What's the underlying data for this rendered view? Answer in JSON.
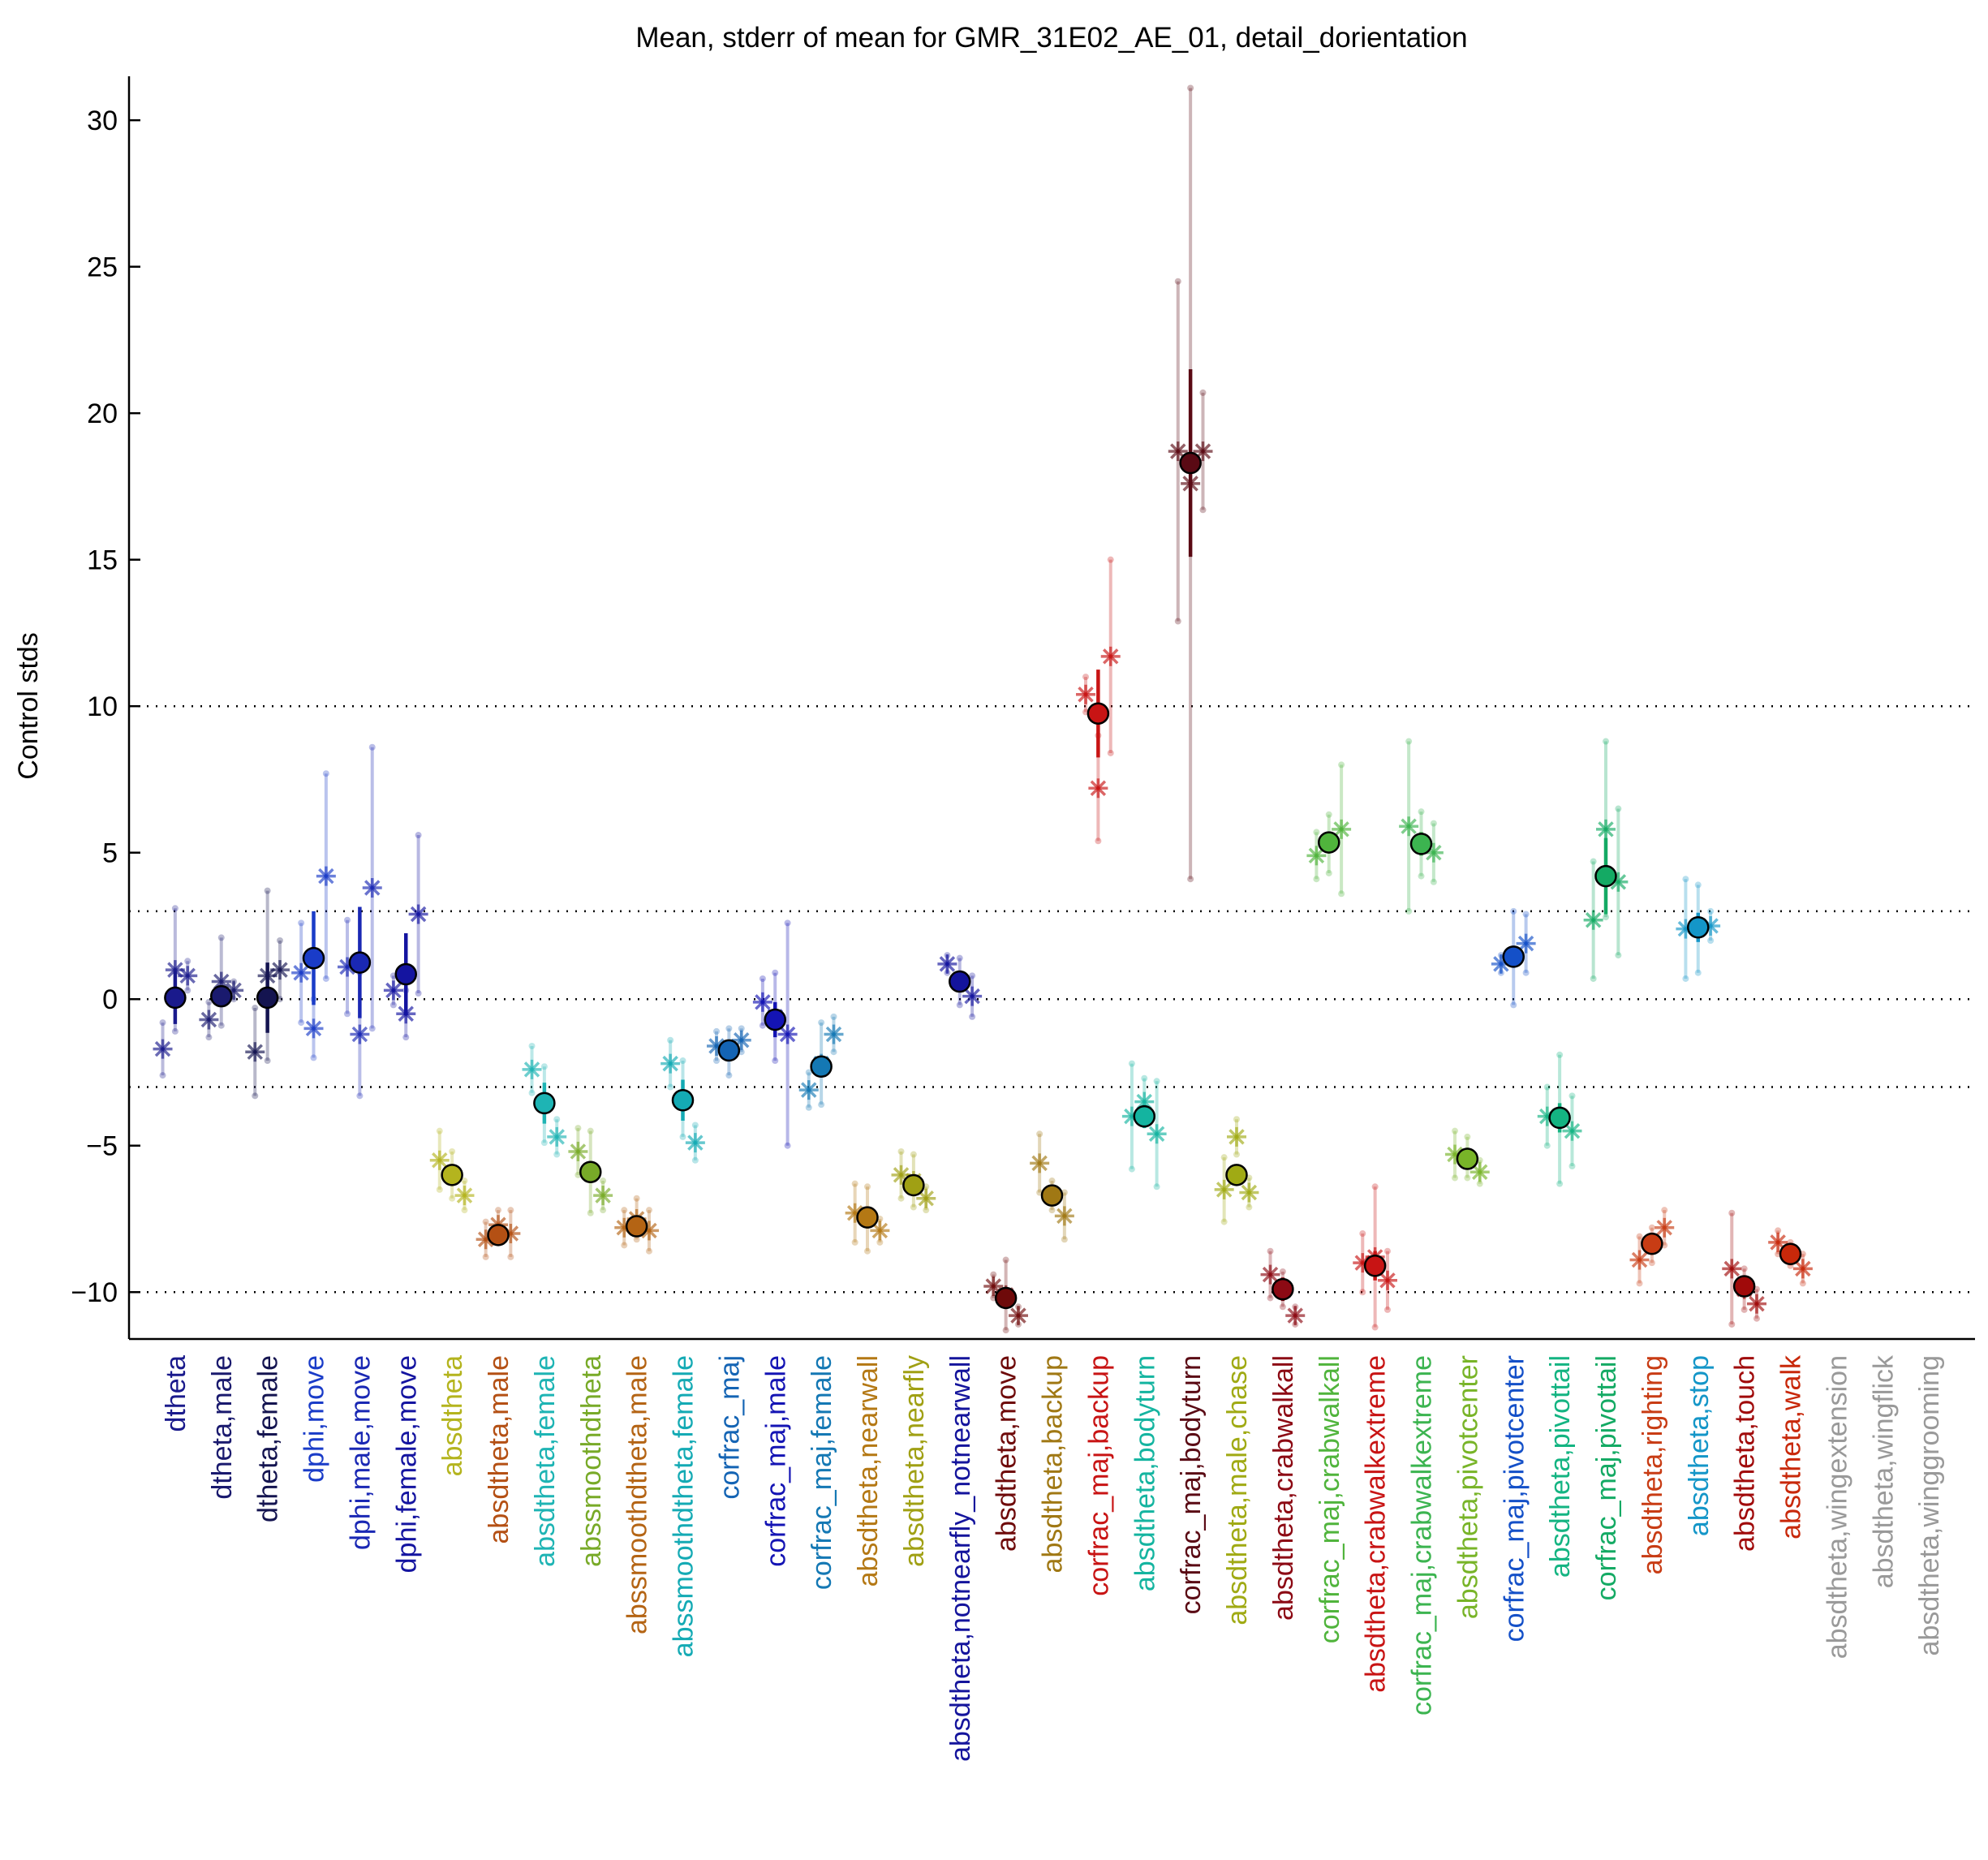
{
  "chart_data": {
    "type": "errorbar",
    "title": "Mean, stderr of mean for GMR_31E02_AE_01, detail_dorientation",
    "y_label": "Control stds",
    "ylim": [
      -11.6,
      31.5
    ],
    "yticks": [
      {
        "value": -10,
        "label": "−10"
      },
      {
        "value": -5,
        "label": "−5"
      },
      0,
      5,
      10,
      15,
      20,
      25,
      30
    ],
    "reference_lines": [
      -10,
      -3,
      0,
      3,
      10
    ],
    "categories": [
      "dtheta",
      "dtheta,male",
      "dtheta,female",
      "dphi,move",
      "dphi,male,move",
      "dphi,female,move",
      "absdtheta",
      "absdtheta,male",
      "absdtheta,female",
      "abssmoothdtheta",
      "abssmoothdtheta,male",
      "abssmoothdtheta,female",
      "corfrac_maj",
      "corfrac_maj,male",
      "corfrac_maj,female",
      "absdtheta,nearwall",
      "absdtheta,nearfly",
      "absdtheta,notnearfly_notnearwall",
      "absdtheta,move",
      "absdtheta,backup",
      "corfrac_maj,backup",
      "absdtheta,bodyturn",
      "corfrac_maj,bodyturn",
      "absdtheta,male,chase",
      "absdtheta,crabwalkall",
      "corfrac_maj,crabwalkall",
      "absdtheta,crabwalkextreme",
      "corfrac_maj,crabwalkextreme",
      "absdtheta,pivotcenter",
      "corfrac_maj,pivotcenter",
      "absdtheta,pivottail",
      "corfrac_maj,pivottail",
      "absdtheta,righting",
      "absdtheta,stop",
      "absdtheta,touch",
      "absdtheta,walk",
      "absdtheta,wingextension",
      "absdtheta,wingflick",
      "absdtheta,winggrooming"
    ],
    "colors": [
      "#1a1a8c",
      "#1a1a6e",
      "#141450",
      "#1a3cc8",
      "#1a28b4",
      "#1414a0",
      "#b4b41e",
      "#b45014",
      "#1eb4b4",
      "#78aa28",
      "#b46414",
      "#14aab4",
      "#1464b4",
      "#1414b4",
      "#1478b4",
      "#b47814",
      "#a0a014",
      "#14149c",
      "#6e0a0a",
      "#a07814",
      "#c81414",
      "#14b4a0",
      "#5a0a14",
      "#a0aa14",
      "#8c0a14",
      "#50b43c",
      "#c81414",
      "#3cb450",
      "#78b428",
      "#1450c8",
      "#14b482",
      "#14aa64",
      "#c83c14",
      "#1496c8",
      "#a00a0a",
      "#c8280a",
      "#999999",
      "#999999",
      "#999999"
    ],
    "means": [
      0.05,
      0.1,
      0.05,
      1.4,
      1.25,
      0.85,
      -6.0,
      -8.05,
      -3.55,
      -5.9,
      -7.75,
      -3.45,
      -1.75,
      -0.7,
      -2.3,
      -7.45,
      -6.35,
      0.6,
      -10.2,
      -6.7,
      9.75,
      -4.0,
      18.3,
      -6.0,
      -9.9,
      5.35,
      -9.1,
      5.3,
      -5.45,
      1.45,
      -4.05,
      4.2,
      -8.35,
      2.45,
      -9.8,
      -8.7,
      null,
      null,
      null
    ],
    "mean_errors": [
      0.9,
      0.3,
      1.2,
      1.6,
      1.9,
      1.4,
      0.3,
      0.3,
      0.7,
      0.3,
      0.3,
      0.7,
      0.2,
      0.6,
      0.3,
      0.3,
      0.2,
      0.2,
      0.2,
      0.3,
      1.5,
      0.4,
      3.2,
      0.3,
      0.4,
      0.3,
      0.5,
      0.4,
      0.2,
      0.3,
      0.5,
      1.3,
      0.2,
      0.5,
      0.3,
      0.2,
      null,
      null,
      null
    ],
    "points": [
      [
        -1.7,
        1.0,
        0.8
      ],
      [
        -0.7,
        0.6,
        0.3
      ],
      [
        -1.8,
        0.8,
        1.0
      ],
      [
        0.9,
        -1.0,
        4.2
      ],
      [
        1.1,
        -1.2,
        3.8
      ],
      [
        0.3,
        -0.5,
        2.9
      ],
      [
        -5.5,
        -6.0,
        -6.7
      ],
      [
        -8.2,
        -7.7,
        -8.0
      ],
      [
        -2.4,
        -3.6,
        -4.7
      ],
      [
        -5.2,
        -5.9,
        -6.7
      ],
      [
        -7.8,
        -7.5,
        -7.9
      ],
      [
        -2.2,
        -3.4,
        -4.9
      ],
      [
        -1.6,
        -1.8,
        -1.4
      ],
      [
        -0.1,
        -0.6,
        -1.2
      ],
      [
        -3.1,
        -2.2,
        -1.2
      ],
      [
        -7.3,
        -7.5,
        -7.9
      ],
      [
        -6.0,
        -6.2,
        -6.8
      ],
      [
        1.2,
        0.6,
        0.1
      ],
      [
        -9.8,
        -10.1,
        -10.8
      ],
      [
        -5.6,
        -6.7,
        -7.4
      ],
      [
        10.4,
        7.2,
        11.7
      ],
      [
        -4.0,
        -3.5,
        -4.6
      ],
      [
        18.7,
        17.6,
        18.7
      ],
      [
        -6.5,
        -4.7,
        -6.6
      ],
      [
        -9.4,
        -9.9,
        -10.8
      ],
      [
        4.9,
        5.3,
        5.8
      ],
      [
        -9.0,
        -8.8,
        -9.6
      ],
      [
        5.9,
        5.3,
        5.0
      ],
      [
        -5.3,
        -5.4,
        -5.9
      ],
      [
        1.2,
        1.4,
        1.9
      ],
      [
        -4.0,
        -4.1,
        -4.5
      ],
      [
        2.7,
        5.8,
        4.0
      ],
      [
        -8.9,
        -8.4,
        -7.8
      ],
      [
        2.4,
        2.4,
        2.5
      ],
      [
        -9.2,
        -9.9,
        -10.4
      ],
      [
        -8.3,
        -8.7,
        -9.2
      ],
      [
        null,
        null,
        null
      ],
      [
        null,
        null,
        null
      ],
      [
        null,
        null,
        null
      ]
    ],
    "point_errors": [
      [
        0.9,
        2.1,
        0.5
      ],
      [
        0.6,
        1.5,
        0.3
      ],
      [
        1.5,
        2.9,
        1.0
      ],
      [
        1.7,
        1.0,
        3.5
      ],
      [
        1.6,
        2.1,
        4.8
      ],
      [
        0.5,
        0.8,
        2.7
      ],
      [
        1.0,
        0.8,
        0.5
      ],
      [
        0.6,
        0.5,
        0.8
      ],
      [
        0.8,
        1.3,
        0.6
      ],
      [
        0.8,
        1.4,
        0.5
      ],
      [
        0.6,
        0.7,
        0.7
      ],
      [
        0.8,
        1.3,
        0.6
      ],
      [
        0.5,
        0.8,
        0.4
      ],
      [
        0.8,
        1.5,
        3.8
      ],
      [
        0.6,
        1.4,
        0.6
      ],
      [
        1.0,
        1.1,
        0.4
      ],
      [
        0.8,
        0.9,
        0.4
      ],
      [
        0.3,
        0.8,
        0.7
      ],
      [
        0.4,
        1.2,
        0.3
      ],
      [
        1.0,
        0.5,
        0.8
      ],
      [
        0.6,
        1.8,
        3.3
      ],
      [
        1.8,
        0.8,
        1.8
      ],
      [
        5.8,
        13.5,
        2.0
      ],
      [
        1.1,
        0.6,
        0.5
      ],
      [
        0.8,
        0.6,
        0.3
      ],
      [
        0.8,
        1.0,
        2.2
      ],
      [
        1.0,
        2.4,
        1.0
      ],
      [
        2.9,
        1.1,
        1.0
      ],
      [
        0.8,
        0.7,
        0.4
      ],
      [
        0.3,
        1.6,
        1.0
      ],
      [
        1.0,
        2.2,
        1.2
      ],
      [
        2.0,
        3.0,
        2.5
      ],
      [
        0.8,
        0.6,
        0.6
      ],
      [
        1.7,
        1.5,
        0.5
      ],
      [
        1.9,
        0.7,
        0.5
      ],
      [
        0.4,
        0.4,
        0.5
      ],
      [
        null,
        null,
        null
      ],
      [
        null,
        null,
        null
      ],
      [
        null,
        null,
        null
      ]
    ]
  }
}
